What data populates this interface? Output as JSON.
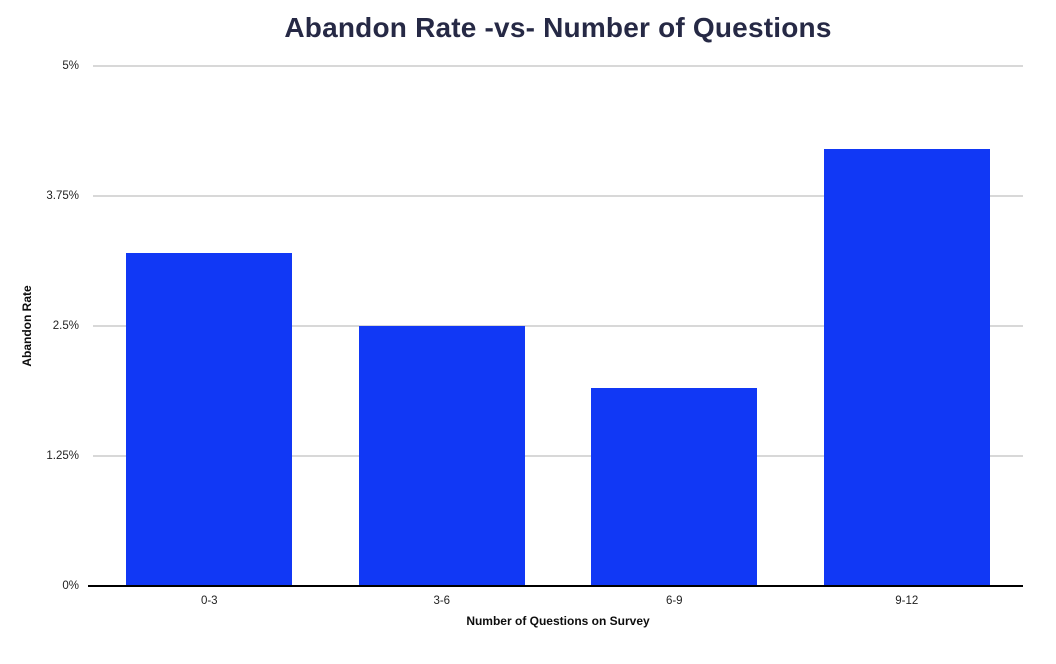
{
  "title": "Abandon Rate -vs- Number of Questions",
  "colors": {
    "bar": "#1138f5",
    "title_text": "#262945",
    "gridline": "#d8d8d8",
    "axis_line": "#000000",
    "tick_text": "#1f1f1f"
  },
  "chart_data": {
    "type": "bar",
    "categories": [
      "0-3",
      "3-6",
      "6-9",
      "9-12"
    ],
    "values": [
      3.2,
      2.5,
      1.9,
      4.2
    ],
    "title": "Abandon Rate -vs- Number of Questions",
    "xlabel": "Number of Questions on Survey",
    "ylabel": "Abandon Rate",
    "ylim": [
      0,
      5
    ],
    "yticks": [
      0,
      1.25,
      2.5,
      3.75,
      5
    ],
    "ytick_labels": [
      "0%",
      "1.25%",
      "2.5%",
      "3.75%",
      "5%"
    ],
    "grid": true,
    "legend": false,
    "bar_color": "#1138f5"
  }
}
